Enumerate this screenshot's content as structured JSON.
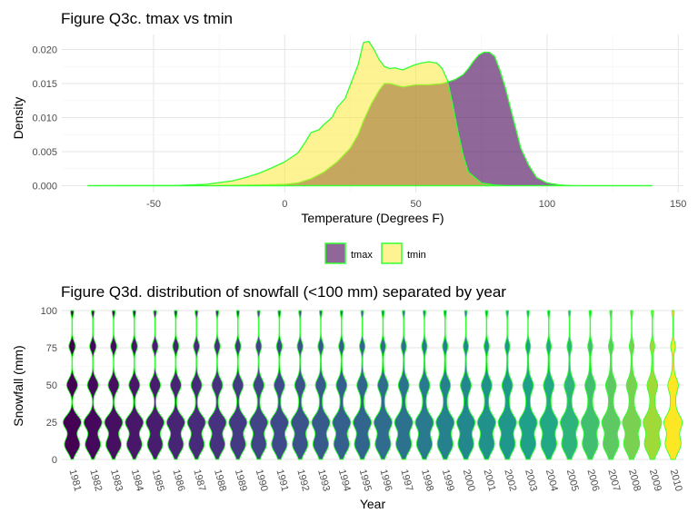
{
  "chart_data": [
    {
      "type": "area",
      "title": "Figure Q3c. tmax vs tmin",
      "xlabel": "Temperature (Degrees F)",
      "ylabel": "Density",
      "xlim": [
        -85,
        152
      ],
      "ylim": [
        -0.001,
        0.0222
      ],
      "xticks": [
        -50,
        0,
        50,
        100,
        150
      ],
      "xtick_labels": [
        "-50",
        "0",
        "50",
        "100",
        "150"
      ],
      "yticks": [
        0,
        0.005,
        0.01,
        0.015,
        0.02
      ],
      "ytick_labels": [
        "0.000",
        "0.005",
        "0.010",
        "0.015",
        "0.020"
      ],
      "grid": true,
      "legend_position": "bottom",
      "outline_color": "#33ff33",
      "series": [
        {
          "name": "tmax",
          "fill": "#440154",
          "opacity": 0.6,
          "x": [
            -75,
            -30,
            -20,
            -10,
            0,
            5,
            10,
            15,
            20,
            25,
            28,
            30,
            33,
            36,
            38,
            40,
            45,
            50,
            55,
            60,
            62,
            65,
            68,
            70,
            72,
            74,
            76,
            78,
            80,
            82,
            84,
            86,
            88,
            90,
            93,
            96,
            100,
            105,
            110,
            140
          ],
          "y": [
            0,
            0,
            5e-05,
            0.0001,
            0.0002,
            0.0004,
            0.001,
            0.002,
            0.0035,
            0.0055,
            0.0075,
            0.0095,
            0.012,
            0.014,
            0.015,
            0.015,
            0.0145,
            0.0148,
            0.0148,
            0.015,
            0.0152,
            0.0156,
            0.0163,
            0.0172,
            0.0183,
            0.0192,
            0.0196,
            0.0196,
            0.019,
            0.017,
            0.0145,
            0.0115,
            0.0085,
            0.0055,
            0.003,
            0.0012,
            0.0004,
            0.0001,
            0,
            0
          ]
        },
        {
          "name": "tmin",
          "fill": "#fde725",
          "opacity": 0.5,
          "x": [
            -75,
            -40,
            -30,
            -20,
            -15,
            -10,
            -5,
            0,
            5,
            8,
            10,
            13,
            15,
            18,
            20,
            23,
            25,
            28,
            30,
            32,
            34,
            36,
            38,
            40,
            42,
            45,
            48,
            50,
            52,
            55,
            58,
            60,
            62,
            64,
            66,
            68,
            70,
            75,
            80,
            85,
            140
          ],
          "y": [
            0,
            5e-05,
            0.0002,
            0.0007,
            0.0012,
            0.0018,
            0.0026,
            0.0035,
            0.0048,
            0.0065,
            0.0078,
            0.0082,
            0.009,
            0.01,
            0.0115,
            0.0128,
            0.0148,
            0.0178,
            0.021,
            0.0212,
            0.02,
            0.0185,
            0.0175,
            0.0172,
            0.0173,
            0.017,
            0.0175,
            0.0178,
            0.018,
            0.0182,
            0.018,
            0.0172,
            0.0155,
            0.012,
            0.008,
            0.0045,
            0.002,
            0.0004,
            0.0001,
            0,
            0
          ]
        }
      ]
    },
    {
      "type": "violin",
      "title": "Figure Q3d. distribution of snowfall (<100 mm) separated by year",
      "xlabel": "Year",
      "ylabel": "Snowfall (mm)",
      "ylim": [
        0,
        100
      ],
      "yticks": [
        0,
        25,
        50,
        75,
        100
      ],
      "ytick_labels": [
        "0",
        "25",
        "50",
        "75",
        "100"
      ],
      "grid": true,
      "outline_color": "#33ff33",
      "categories": [
        "1981",
        "1982",
        "1983",
        "1984",
        "1985",
        "1986",
        "1987",
        "1988",
        "1989",
        "1990",
        "1991",
        "1992",
        "1993",
        "1994",
        "1995",
        "1996",
        "1997",
        "1998",
        "1999",
        "2000",
        "2001",
        "2002",
        "2003",
        "2004",
        "2005",
        "2006",
        "2007",
        "2008",
        "2009",
        "2010"
      ],
      "fill_colors": [
        "#440154",
        "#46085c",
        "#470f62",
        "#481769",
        "#481d6f",
        "#482475",
        "#472b7a",
        "#46327e",
        "#443983",
        "#414487",
        "#3e4a89",
        "#3b528b",
        "#38598c",
        "#355f8d",
        "#32658e",
        "#2f6c8e",
        "#2c728e",
        "#297a8e",
        "#26818e",
        "#23888e",
        "#21918c",
        "#1f988b",
        "#1fa088",
        "#22a884",
        "#2eb37c",
        "#42be71",
        "#5ec962",
        "#7ad151",
        "#a0da39",
        "#fde725"
      ]
    }
  ]
}
